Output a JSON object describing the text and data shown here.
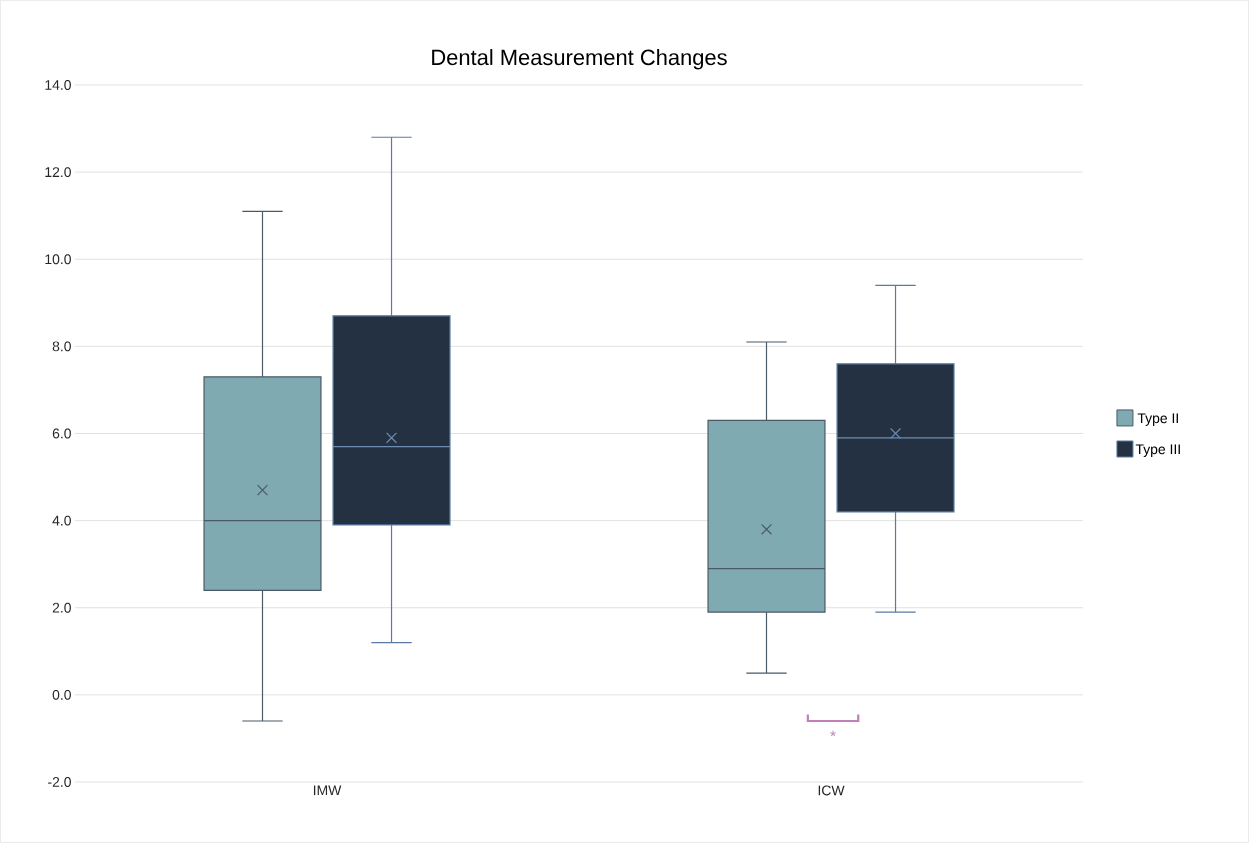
{
  "chart_data": {
    "type": "box",
    "title": "Dental Measurement Changes",
    "categories": [
      "IMW",
      "ICW"
    ],
    "series": [
      {
        "name": "Type II",
        "color": "#7faab1",
        "boxes": [
          {
            "low": -0.6,
            "q1": 2.4,
            "median": 4.0,
            "q3": 7.3,
            "high": 11.1,
            "mean": 4.7
          },
          {
            "low": 0.5,
            "q1": 1.9,
            "median": 2.9,
            "q3": 6.3,
            "high": 8.1,
            "mean": 3.8
          }
        ]
      },
      {
        "name": "Type III",
        "color": "#243142",
        "boxes": [
          {
            "low": 1.2,
            "q1": 3.9,
            "median": 5.7,
            "q3": 8.7,
            "high": 12.8,
            "mean": 5.9
          },
          {
            "low": 1.9,
            "q1": 4.2,
            "median": 5.9,
            "q3": 7.6,
            "high": 9.4,
            "mean": 6.0
          }
        ]
      }
    ],
    "ylim": [
      -2,
      14
    ],
    "yticks": [
      {
        "value": -2,
        "label": "-2.0"
      },
      {
        "value": 0,
        "label": "0.0"
      },
      {
        "value": 2,
        "label": "2.0"
      },
      {
        "value": 4,
        "label": "4.0"
      },
      {
        "value": 6,
        "label": "6.0"
      },
      {
        "value": 8,
        "label": "8.0"
      },
      {
        "value": 10,
        "label": "10.0"
      },
      {
        "value": 12,
        "label": "12.0"
      },
      {
        "value": 14,
        "label": "14.0"
      }
    ],
    "grid": "y",
    "legend": "right",
    "marker": "cross",
    "annotations": [
      "*"
    ]
  }
}
